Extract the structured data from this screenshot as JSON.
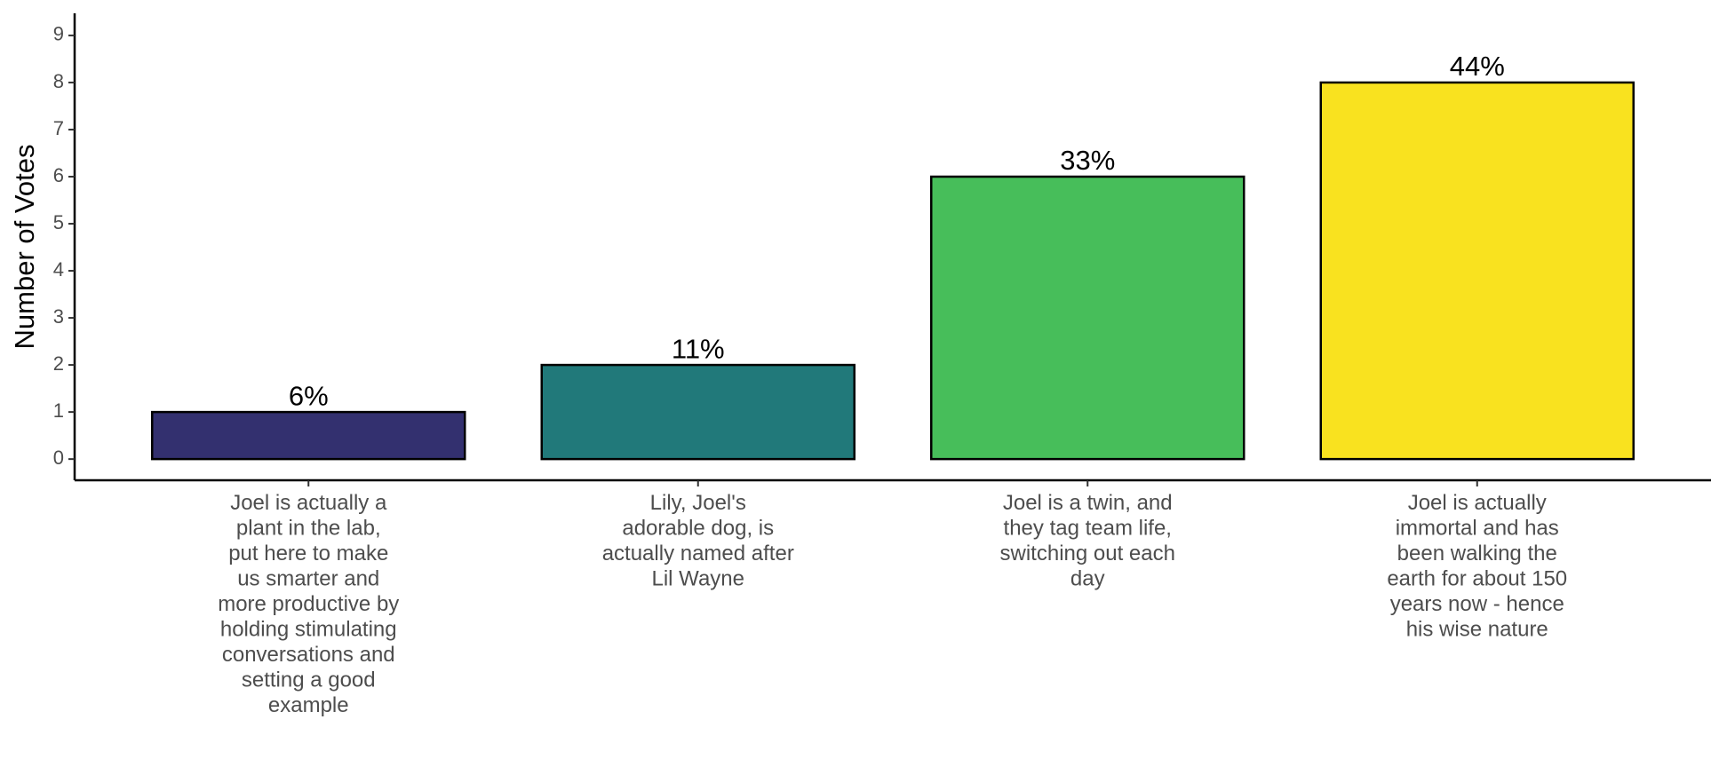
{
  "chart_data": {
    "type": "bar",
    "y_label": "Number of Votes",
    "categories": [
      "Joel is actually a\nplant in the lab,\nput here to make\nus smarter and\nmore productive by\nholding stimulating\nconversations and\nsetting a good\nexample",
      "Lily, Joel's\nadorable dog, is\nactually named after\nLil Wayne",
      "Joel is a twin, and\nthey tag team life,\nswitching out each\nday",
      "Joel is actually\nimmortal and has\nbeen walking the\nearth for about 150\nyears now - hence\nhis wise nature"
    ],
    "values": [
      1,
      2,
      6,
      8
    ],
    "colors": [
      "#33306f",
      "#21797a",
      "#47be5a",
      "#f9e21f"
    ],
    "percent_labels": [
      "6%",
      "11%",
      "33%",
      "44%"
    ],
    "ylim": [
      -0.45,
      9.47
    ],
    "yticks": [
      0,
      1,
      2,
      3,
      4,
      5,
      6,
      7,
      8,
      9
    ]
  }
}
